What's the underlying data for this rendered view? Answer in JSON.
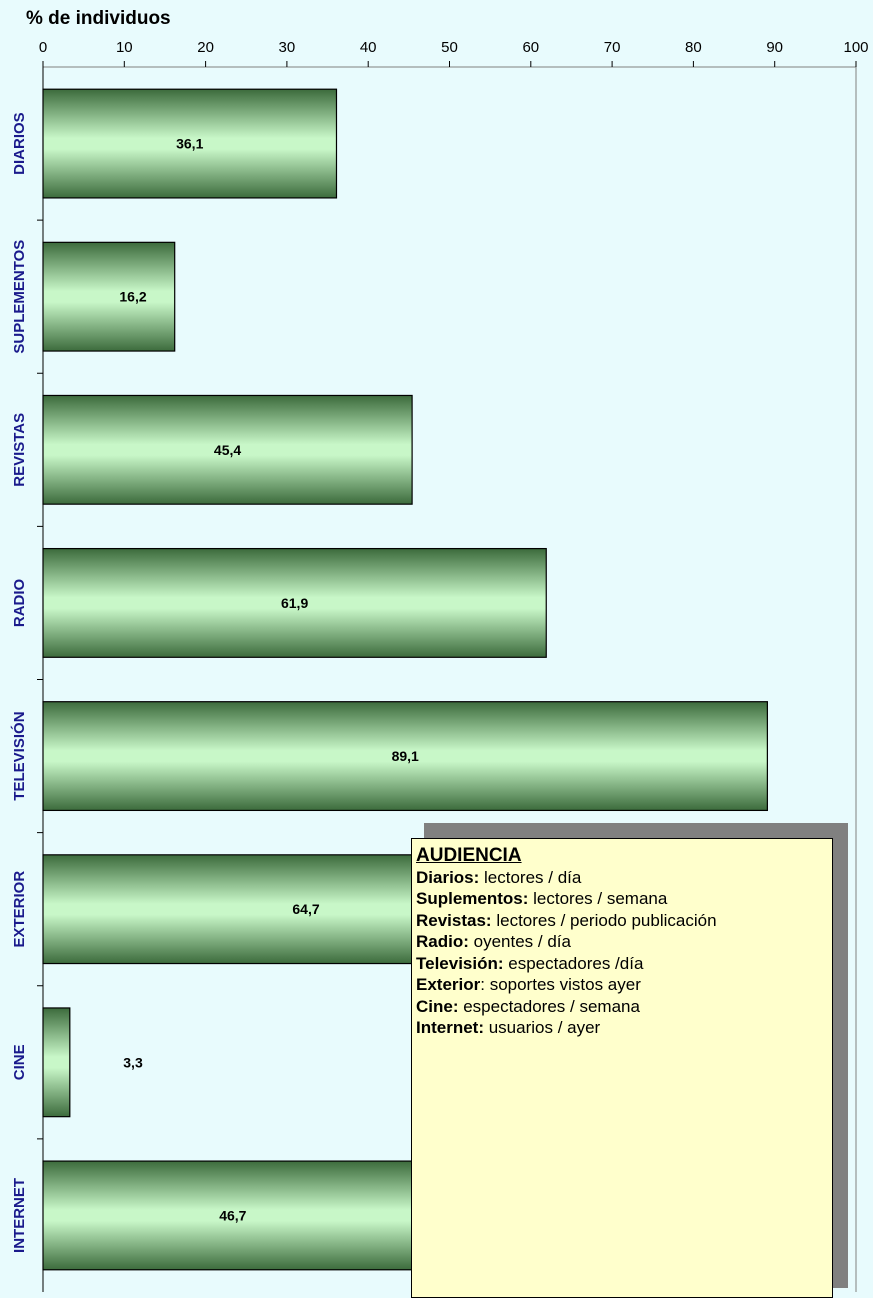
{
  "chart_data": {
    "type": "bar",
    "orientation": "horizontal",
    "xlabel": "% de individuos",
    "xlim": [
      0,
      100
    ],
    "ticks": [
      0,
      10,
      20,
      30,
      40,
      50,
      60,
      70,
      80,
      90,
      100
    ],
    "categories": [
      "DIARIOS",
      "SUPLEMENTOS",
      "REVISTAS",
      "RADIO",
      "TELEVISIÓN",
      "EXTERIOR",
      "CINE",
      "INTERNET"
    ],
    "values": [
      36.1,
      16.2,
      45.4,
      61.9,
      89.1,
      64.7,
      3.3,
      46.7
    ],
    "labels": [
      "36,1",
      "16,2",
      "45,4",
      "61,9",
      "89,1",
      "64,7",
      "3,3",
      "46,7"
    ],
    "grid": false,
    "colors": {
      "bar": "#a6e3a6",
      "category": "#1a1a8c",
      "background": "#e8fbfd"
    }
  },
  "legend": {
    "title": "AUDIENCIA",
    "items": [
      {
        "term": "Diarios:",
        "desc": " lectores / día"
      },
      {
        "term": "Suplementos:",
        "desc": " lectores / semana"
      },
      {
        "term": "Revistas:",
        "desc": " lectores / periodo publicación"
      },
      {
        "term": "Radio:",
        "desc": " oyentes / día"
      },
      {
        "term": "Televisión:",
        "desc": " espectadores /día"
      },
      {
        "term": "Exterior",
        "desc": ": soportes vistos ayer"
      },
      {
        "term": "Cine:",
        "desc": " espectadores / semana"
      },
      {
        "term": "Internet:",
        "desc": " usuarios / ayer"
      }
    ]
  }
}
